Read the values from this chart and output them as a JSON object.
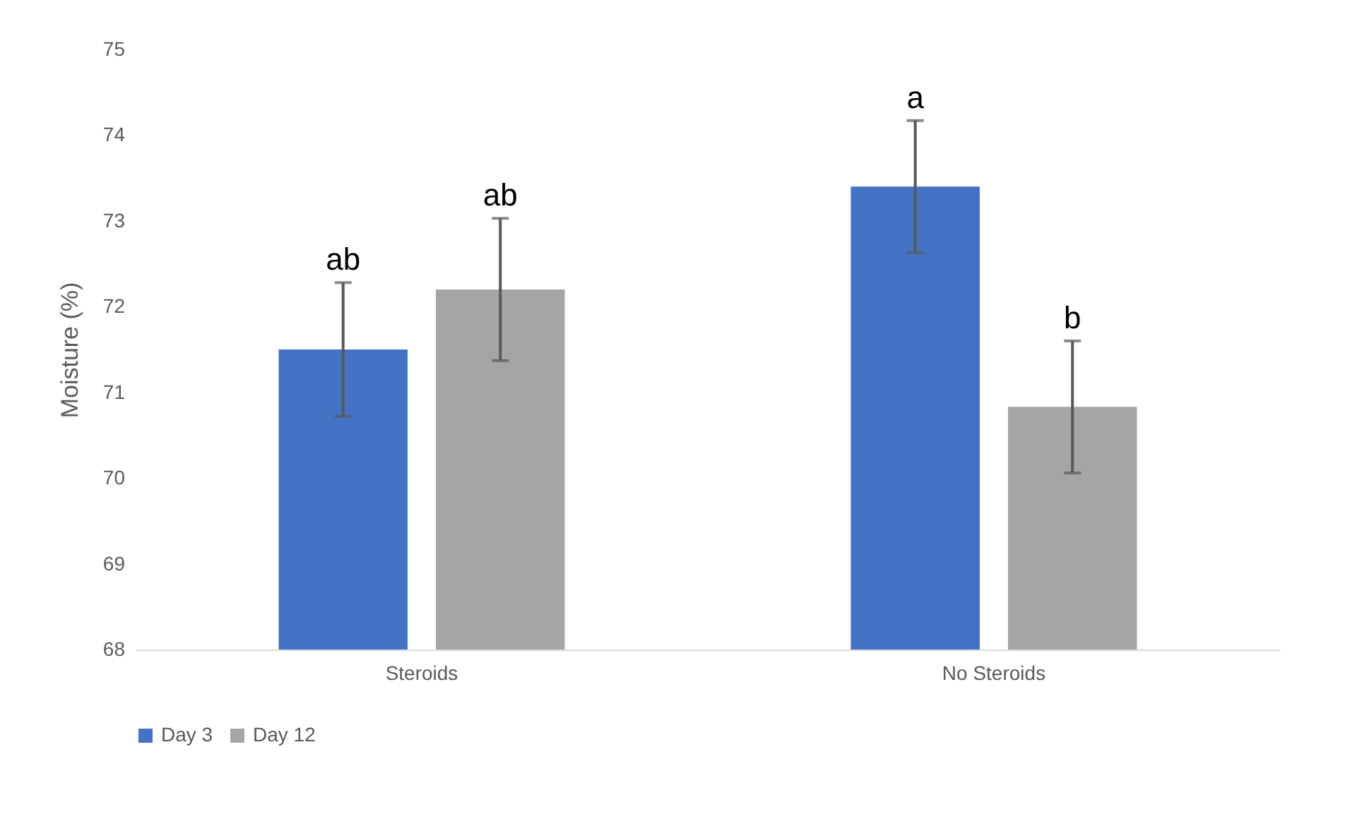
{
  "chart_data": {
    "type": "bar",
    "ylabel": "Moisture (%)",
    "categories": [
      "Steroids",
      "No Steroids"
    ],
    "series": [
      {
        "name": "Day 3",
        "color": "#4472c4",
        "values": [
          71.5,
          73.4
        ],
        "errors": [
          0.78,
          0.77
        ],
        "value_labels": [
          "ab",
          "a"
        ]
      },
      {
        "name": "Day 12",
        "color": "#a5a5a5",
        "values": [
          72.2,
          70.83
        ],
        "errors": [
          0.83,
          0.77
        ],
        "value_labels": [
          "ab",
          "b"
        ]
      }
    ],
    "ylim": [
      68,
      75
    ],
    "yticks": [
      68,
      69,
      70,
      71,
      72,
      73,
      74,
      75
    ],
    "grid": false,
    "legend": "bottom"
  }
}
